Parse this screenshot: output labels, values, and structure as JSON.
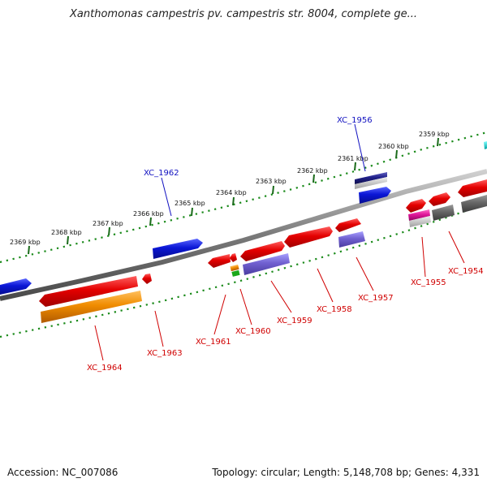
{
  "title": "Xanthomonas campestris pv. campestris str. 8004, complete ge...",
  "footer": {
    "accession": "Accession: NC_007086",
    "topology": "Topology: circular; Length: 5,148,708 bp; Genes: 4,331"
  },
  "ruler_ticks": [
    "2369 kbp",
    "2368 kbp",
    "2367 kbp",
    "2366 kbp",
    "2365 kbp",
    "2364 kbp",
    "2363 kbp",
    "2362 kbp",
    "2361 kbp",
    "2360 kbp",
    "2359 kbp"
  ],
  "gene_labels": [
    "XC_1956",
    "XC_1962",
    "XC_1954",
    "XC_1955",
    "XC_1957",
    "XC_1958",
    "XC_1959",
    "XC_1960",
    "XC_1961",
    "XC_1963",
    "XC_1964"
  ],
  "colors": {
    "red": "#e40000",
    "blue": "#0a16d6",
    "orange": "#f08c00",
    "lavender": "#7060d0",
    "gray": "#6a6a6a",
    "pink": "#e0189a",
    "green": "#1aa81a",
    "navy": "#20208a",
    "cyan": "#00c8c8",
    "tick_green": "#1a6a1a",
    "label_red": "#d00000",
    "label_blue": "#1010c0"
  }
}
